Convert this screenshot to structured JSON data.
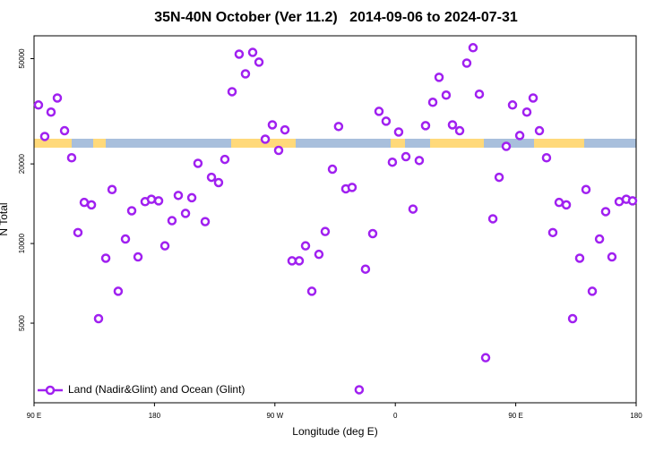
{
  "chart_data": {
    "type": "scatter",
    "title": "35N-40N October (Ver 11.2)   2014-09-06 to 2024-07-31",
    "xlabel": "Longitude (deg E)",
    "ylabel": "N Total",
    "xlim": [
      90,
      540
    ],
    "xticks": [
      {
        "value": 90,
        "label": "90 E"
      },
      180,
      {
        "value": 270,
        "label": "90 W"
      },
      {
        "value": 360,
        "label": "0"
      },
      {
        "value": 450,
        "label": "90 E"
      },
      {
        "value": 540,
        "label": "180"
      }
    ],
    "ylim": [
      2500,
      61000
    ],
    "yscale": "log",
    "yticks": [
      5000,
      10000,
      20000,
      50000
    ],
    "legend_position": "bottom-left",
    "series": [
      {
        "name": "Land (Nadir&Glint) and Ocean (Glint)",
        "color": "#a020f0",
        "x": [
          93.3,
          98.0,
          102.7,
          107.4,
          112.8,
          118.1,
          122.8,
          127.5,
          132.9,
          138.2,
          143.6,
          148.3,
          152.9,
          158.3,
          163.0,
          167.7,
          173.0,
          177.7,
          183.1,
          187.8,
          193.1,
          197.8,
          203.2,
          207.9,
          212.5,
          217.9,
          222.6,
          227.9,
          232.6,
          238.0,
          243.3,
          248.0,
          253.4,
          258.1,
          262.8,
          268.1,
          272.8,
          277.5,
          282.8,
          288.2,
          292.9,
          297.6,
          302.9,
          307.6,
          313.0,
          317.6,
          323.0,
          327.7,
          333.0,
          337.7,
          343.1,
          347.8,
          353.1,
          357.8,
          362.5,
          367.9,
          373.2,
          377.9,
          382.6,
          388.0,
          392.7,
          398.0,
          402.7,
          408.1,
          413.4,
          418.1,
          422.8,
          427.5,
          432.9,
          437.6,
          442.9,
          447.6,
          453.0,
          458.3,
          463.0,
          467.7,
          473.0,
          477.7,
          482.4,
          487.8,
          492.5,
          497.8,
          502.5,
          507.2,
          512.6,
          517.2,
          521.9,
          527.3,
          532.6,
          537.3
        ],
        "values": [
          33400,
          25400,
          31400,
          35500,
          26700,
          21100,
          11000,
          14300,
          14000,
          5200,
          8800,
          16000,
          6600,
          10400,
          13300,
          8900,
          14400,
          14700,
          14500,
          9800,
          12200,
          15200,
          13000,
          14900,
          20100,
          12100,
          17800,
          17000,
          20800,
          37500,
          52000,
          43800,
          52800,
          48500,
          24800,
          28100,
          22500,
          26900,
          8600,
          8600,
          9800,
          6600,
          9100,
          11100,
          19100,
          27700,
          16100,
          16300,
          2800,
          8000,
          10900,
          31600,
          29000,
          20300,
          26400,
          21300,
          13500,
          20600,
          27900,
          34200,
          42500,
          36400,
          28100,
          26700,
          48100,
          55000,
          36700,
          3700,
          12400,
          17800,
          23300,
          33400,
          25600,
          31400,
          35500,
          26700,
          21100,
          11000,
          14300,
          14000,
          5200,
          8800,
          16000,
          6600,
          10400,
          13200,
          8900,
          14400,
          14700,
          14500
        ]
      }
    ]
  }
}
